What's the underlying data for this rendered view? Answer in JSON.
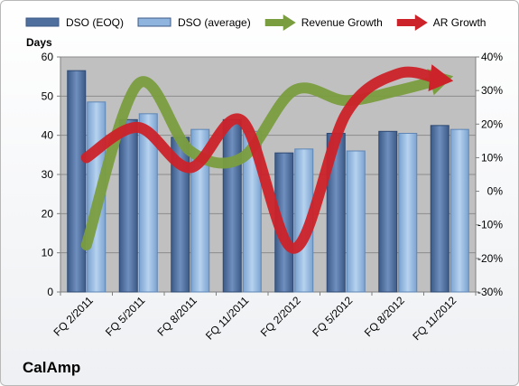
{
  "chart_data": {
    "type": "bar",
    "title": "",
    "brand": "CalAmp",
    "ylabel_left": "Days",
    "categories": [
      "FQ 2/2011",
      "FQ 5/2011",
      "FQ 8/2011",
      "FQ 11/2011",
      "FQ 2/2012",
      "FQ 5/2012",
      "FQ 8/2012",
      "FQ 11/2012"
    ],
    "left_axis": {
      "min": 0,
      "max": 60,
      "step": 10
    },
    "right_axis": {
      "min": -30,
      "max": 40,
      "step": 10,
      "unit": "%"
    },
    "series": [
      {
        "name": "DSO (EOQ)",
        "kind": "bar",
        "axis": "left",
        "color": "#4f6f9f",
        "values": [
          56.5,
          44,
          39.5,
          44,
          35.5,
          40.5,
          41,
          42.5
        ]
      },
      {
        "name": "DSO (average)",
        "kind": "bar",
        "axis": "left",
        "color": "#8fb4dd",
        "values": [
          48.5,
          45.5,
          41.5,
          41,
          36.5,
          36,
          40.5,
          41.5
        ]
      },
      {
        "name": "Revenue Growth",
        "kind": "line",
        "axis": "right",
        "color": "#7a9d3f",
        "values": [
          -16,
          32,
          12,
          10,
          30,
          27,
          30,
          34
        ]
      },
      {
        "name": "AR Growth",
        "kind": "line",
        "axis": "right",
        "color": "#cc2229",
        "values": [
          10,
          19,
          7,
          21,
          -17,
          23,
          35,
          33
        ]
      }
    ],
    "grid": true,
    "legend_position": "top"
  }
}
